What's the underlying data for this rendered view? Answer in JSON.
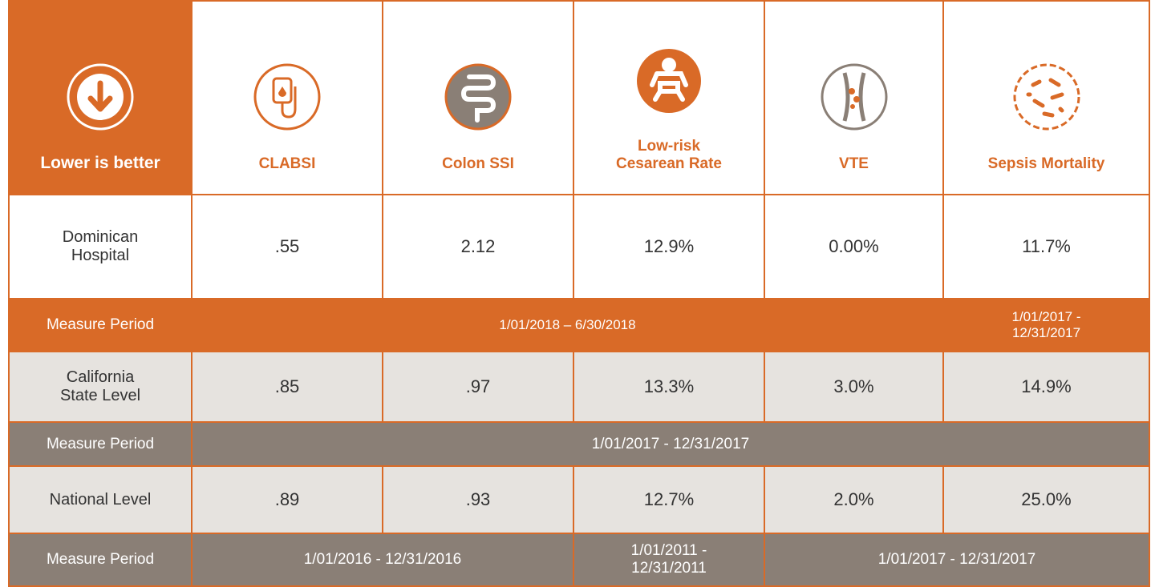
{
  "header": {
    "label": "Lower is better",
    "columns": [
      "CLABSI",
      "Colon SSI",
      "Low-risk Cesarean Rate",
      "VTE",
      "Sepsis Mortality"
    ]
  },
  "rows": [
    {
      "label": "Dominican Hospital",
      "values": [
        ".55",
        "2.12",
        "12.9%",
        "0.00%",
        "11.7%"
      ]
    },
    {
      "label": "Measure Period",
      "periods": [
        "1/01/2018 – 6/30/2018",
        "1/01/2017 - 12/31/2017"
      ]
    },
    {
      "label": "California State Level",
      "values": [
        ".85",
        ".97",
        "13.3%",
        "3.0%",
        "14.9%"
      ]
    },
    {
      "label": "Measure Period",
      "periods": [
        "1/01/2017 - 12/31/2017"
      ]
    },
    {
      "label": "National Level",
      "values": [
        ".89",
        ".93",
        "12.7%",
        "2.0%",
        "25.0%"
      ]
    },
    {
      "label": "Measure Period",
      "periods": [
        "1/01/2016 - 12/31/2016",
        "1/01/2011 - 12/31/2011",
        "1/01/2017 - 12/31/2017"
      ]
    }
  ]
}
